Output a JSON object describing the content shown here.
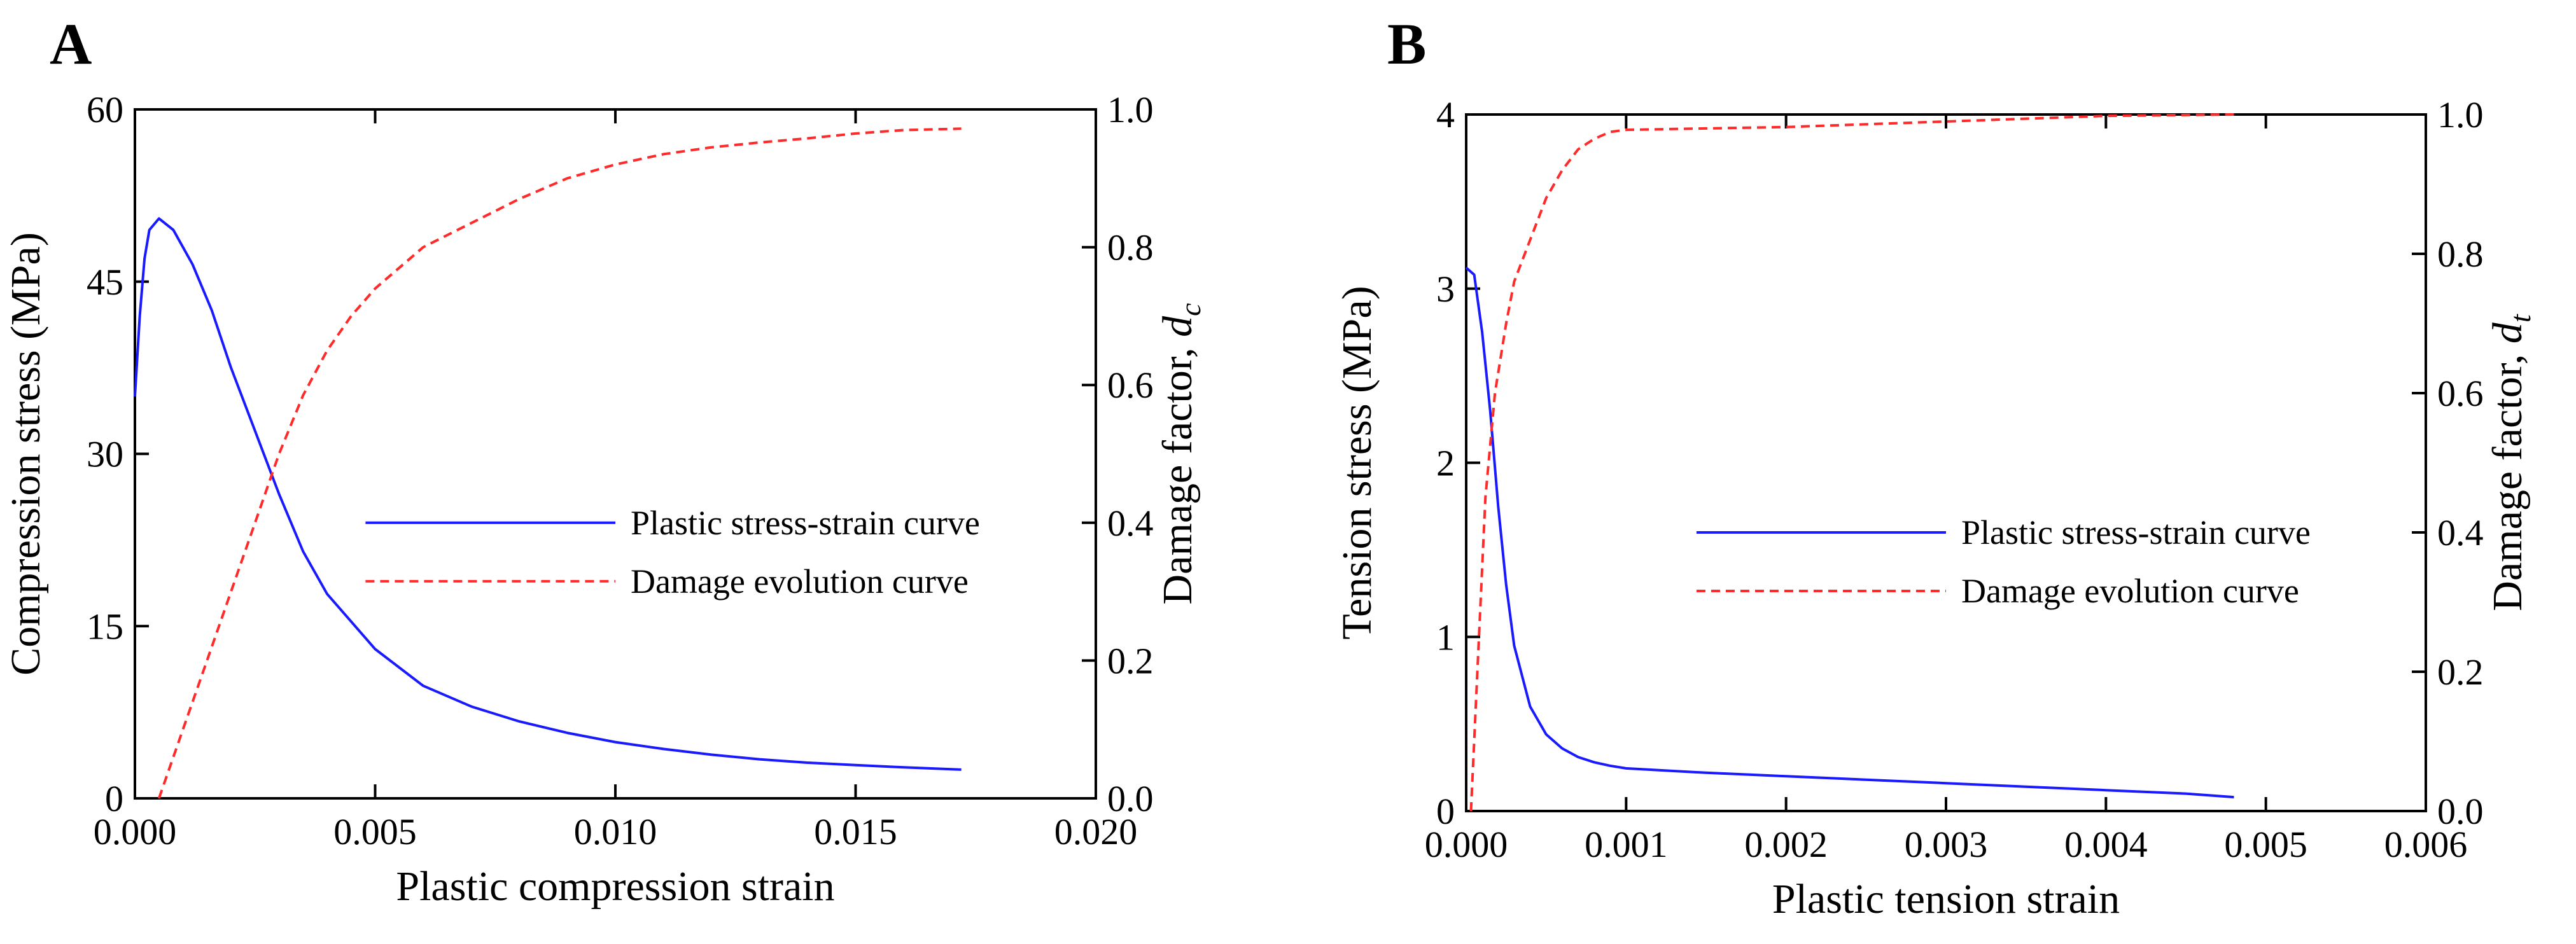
{
  "chart_data": [
    {
      "panel": "A",
      "type": "line",
      "xlabel": "Plastic compression strain",
      "ylabel": "Compression stress (MPa)",
      "y2label": {
        "text": "Damage factor, ",
        "var": "d",
        "sub": "c"
      },
      "xlim": [
        0,
        0.02
      ],
      "ylim": [
        0,
        60
      ],
      "y2lim": [
        0,
        1.0
      ],
      "xticks": [
        "0.000",
        "0.005",
        "0.010",
        "0.015",
        "0.020"
      ],
      "yticks": [
        "0",
        "15",
        "30",
        "45",
        "60"
      ],
      "y2ticks": [
        "0.0",
        "0.2",
        "0.4",
        "0.6",
        "0.8",
        "1.0"
      ],
      "legend": {
        "placement": "center-right"
      },
      "series": [
        {
          "name": "Plastic stress-strain curve",
          "axis": "left",
          "color": "#1a1aff",
          "dash": "solid",
          "points": [
            [
              0,
              35
            ],
            [
              0.0001,
              42
            ],
            [
              0.0002,
              47
            ],
            [
              0.0003,
              49.5
            ],
            [
              0.0005,
              50.5
            ],
            [
              0.0008,
              49.5
            ],
            [
              0.0012,
              46.5
            ],
            [
              0.0016,
              42.5
            ],
            [
              0.002,
              37.5
            ],
            [
              0.0025,
              32
            ],
            [
              0.003,
              26.5
            ],
            [
              0.0035,
              21.5
            ],
            [
              0.004,
              17.8
            ],
            [
              0.005,
              13
            ],
            [
              0.006,
              9.8
            ],
            [
              0.007,
              8
            ],
            [
              0.008,
              6.7
            ],
            [
              0.009,
              5.7
            ],
            [
              0.01,
              4.9
            ],
            [
              0.011,
              4.3
            ],
            [
              0.012,
              3.8
            ],
            [
              0.013,
              3.4
            ],
            [
              0.014,
              3.1
            ],
            [
              0.015,
              2.9
            ],
            [
              0.016,
              2.7
            ],
            [
              0.0172,
              2.5
            ]
          ]
        },
        {
          "name": "Damage evolution curve",
          "axis": "right",
          "color": "#ff2a2a",
          "dash": "dashed",
          "points": [
            [
              0.0005,
              0.0
            ],
            [
              0.001,
              0.1
            ],
            [
              0.0015,
              0.2
            ],
            [
              0.002,
              0.3
            ],
            [
              0.0025,
              0.4
            ],
            [
              0.003,
              0.5
            ],
            [
              0.0035,
              0.585
            ],
            [
              0.004,
              0.65
            ],
            [
              0.0045,
              0.7
            ],
            [
              0.005,
              0.74
            ],
            [
              0.006,
              0.8
            ],
            [
              0.007,
              0.835
            ],
            [
              0.008,
              0.87
            ],
            [
              0.009,
              0.9
            ],
            [
              0.01,
              0.92
            ],
            [
              0.011,
              0.935
            ],
            [
              0.012,
              0.945
            ],
            [
              0.013,
              0.952
            ],
            [
              0.014,
              0.958
            ],
            [
              0.015,
              0.965
            ],
            [
              0.016,
              0.97
            ],
            [
              0.0172,
              0.972
            ]
          ]
        }
      ]
    },
    {
      "panel": "B",
      "type": "line",
      "xlabel": "Plastic tension strain",
      "ylabel": "Tension stress (MPa)",
      "y2label": {
        "text": "Damage factor, ",
        "var": "d",
        "sub": "t"
      },
      "xlim": [
        0,
        0.006
      ],
      "ylim": [
        0,
        4
      ],
      "y2lim": [
        0,
        1.0
      ],
      "xticks": [
        "0.000",
        "0.001",
        "0.002",
        "0.003",
        "0.004",
        "0.005",
        "0.006"
      ],
      "yticks": [
        "0",
        "1",
        "2",
        "3",
        "4"
      ],
      "y2ticks": [
        "0.0",
        "0.2",
        "0.4",
        "0.6",
        "0.8",
        "1.0"
      ],
      "legend": {
        "placement": "center-right"
      },
      "series": [
        {
          "name": "Plastic stress-strain curve",
          "axis": "left",
          "color": "#1a1aff",
          "dash": "solid",
          "points": [
            [
              0,
              3.12
            ],
            [
              5e-05,
              3.08
            ],
            [
              0.0001,
              2.75
            ],
            [
              0.00015,
              2.3
            ],
            [
              0.0002,
              1.75
            ],
            [
              0.00025,
              1.3
            ],
            [
              0.0003,
              0.95
            ],
            [
              0.0004,
              0.6
            ],
            [
              0.0005,
              0.44
            ],
            [
              0.0006,
              0.36
            ],
            [
              0.0007,
              0.31
            ],
            [
              0.0008,
              0.28
            ],
            [
              0.0009,
              0.26
            ],
            [
              0.001,
              0.245
            ],
            [
              0.0015,
              0.22
            ],
            [
              0.002,
              0.2
            ],
            [
              0.0025,
              0.18
            ],
            [
              0.003,
              0.16
            ],
            [
              0.0035,
              0.14
            ],
            [
              0.004,
              0.12
            ],
            [
              0.0045,
              0.1
            ],
            [
              0.0048,
              0.08
            ]
          ]
        },
        {
          "name": "Damage evolution curve",
          "axis": "right",
          "color": "#ff2a2a",
          "dash": "dashed",
          "points": [
            [
              3e-05,
              0.0
            ],
            [
              8e-05,
              0.25
            ],
            [
              0.00012,
              0.45
            ],
            [
              0.00018,
              0.6
            ],
            [
              0.00025,
              0.7
            ],
            [
              0.0003,
              0.76
            ],
            [
              0.0004,
              0.82
            ],
            [
              0.0005,
              0.88
            ],
            [
              0.0006,
              0.92
            ],
            [
              0.0007,
              0.95
            ],
            [
              0.0008,
              0.965
            ],
            [
              0.0009,
              0.975
            ],
            [
              0.001,
              0.978
            ],
            [
              0.0015,
              0.98
            ],
            [
              0.002,
              0.982
            ],
            [
              0.003,
              0.99
            ],
            [
              0.004,
              0.998
            ],
            [
              0.0048,
              1.0
            ]
          ]
        }
      ]
    }
  ]
}
